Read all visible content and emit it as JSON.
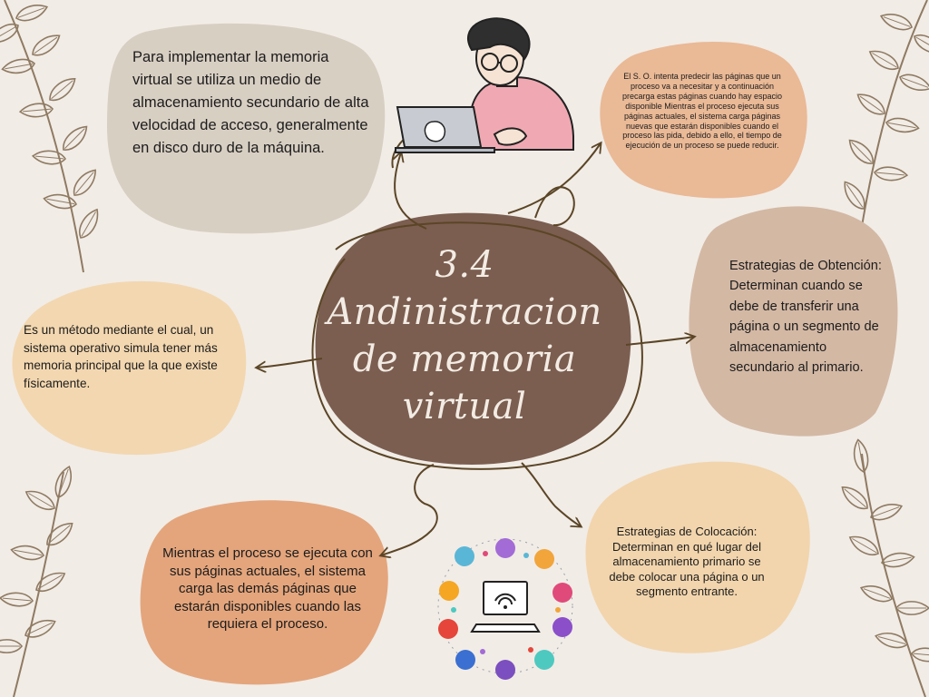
{
  "title": {
    "line1": "3.4",
    "line2": "Andinistracion",
    "line3": "de memoria",
    "line4": "virtual"
  },
  "nodes": {
    "top_left": "Para implementar la memoria virtual se utiliza un medio de almacenamiento secundario de alta velocidad de acceso, generalmente en disco duro de la máquina.",
    "top_right": "El S. O. intenta predecir las páginas que un proceso va a necesitar y a continuación precarga estas páginas cuando hay espacio disponible Mientras el proceso ejecuta sus páginas actuales, el sistema carga páginas nuevas que estarán disponibles cuando el proceso las pida, debido a ello, el tiempo de ejecución de un proceso se puede reducir.",
    "right": "Estrategias de Obtención: Determinan cuando se debe de transferir una página o un segmento de almacenamiento secundario al primario.",
    "left": "Es un método mediante el cual, un sistema operativo simula tener más memoria principal que la que existe físicamente.",
    "bottom_left": "Mientras el proceso se ejecuta con sus páginas actuales, el sistema carga las demás páginas que estarán disponibles cuando las requiera el proceso.",
    "bottom_right": "Estrategias de Colocación: Determinan en qué lugar del almacenamiento primario se debe colocar una página o un segmento entrante."
  },
  "colors": {
    "background": "#f1ece6",
    "center": "#7b5e50",
    "center_text": "#f3ece4",
    "blob_top_left": "#d8cfc3",
    "blob_top_right": "#eab996",
    "blob_right": "#d3b8a4",
    "blob_left": "#f3d7b0",
    "blob_bottom_left": "#e4a57c",
    "blob_bottom_right": "#f2d5ad",
    "arrow": "#5b4526",
    "leaf": "#8f7a62"
  },
  "icons": [
    "person-laptop-icon",
    "technology-network-icon",
    "leaf-branch-icon",
    "arrow-icon"
  ]
}
